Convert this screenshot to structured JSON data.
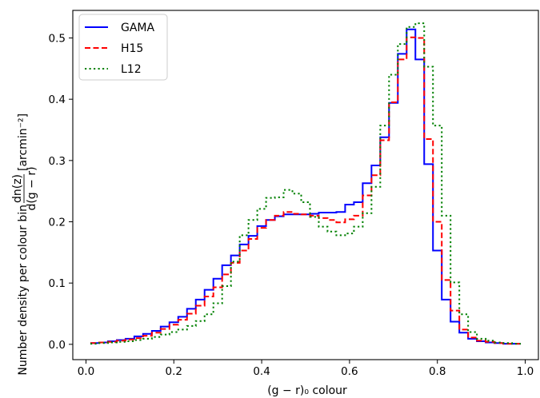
{
  "chart_data": {
    "type": "line",
    "xlabel": "(g − r)₀ colour",
    "ylabel_prefix": "Number density per colour bin",
    "ylabel_fraction_numerator": "dn(z)",
    "ylabel_fraction_denominator": "d(g − r)",
    "ylabel_units": "[arcmin⁻²]",
    "xlim": [
      -0.03,
      1.03
    ],
    "ylim": [
      -0.025,
      0.545
    ],
    "xticks": [
      0.0,
      0.2,
      0.4,
      0.6,
      0.8,
      1.0
    ],
    "xtick_labels": [
      "0.0",
      "0.2",
      "0.4",
      "0.6",
      "0.8",
      "1.0"
    ],
    "yticks": [
      0.0,
      0.1,
      0.2,
      0.3,
      0.4,
      0.5
    ],
    "ytick_labels": [
      "0.0",
      "0.1",
      "0.2",
      "0.3",
      "0.4",
      "0.5"
    ],
    "grid": false,
    "legend_position": "top-left",
    "bin_edges": [
      0.01,
      0.03,
      0.05,
      0.07,
      0.09,
      0.11,
      0.13,
      0.15,
      0.17,
      0.19,
      0.21,
      0.23,
      0.25,
      0.27,
      0.29,
      0.31,
      0.33,
      0.35,
      0.37,
      0.39,
      0.41,
      0.43,
      0.45,
      0.47,
      0.49,
      0.51,
      0.53,
      0.55,
      0.57,
      0.59,
      0.61,
      0.63,
      0.65,
      0.67,
      0.69,
      0.71,
      0.73,
      0.75,
      0.77,
      0.79,
      0.81,
      0.83,
      0.85,
      0.87,
      0.89,
      0.91,
      0.93,
      0.95,
      0.97,
      0.99
    ],
    "series": [
      {
        "name": "GAMA",
        "color": "#0000ff",
        "dash": "solid",
        "values": [
          0.002,
          0.003,
          0.005,
          0.007,
          0.009,
          0.013,
          0.017,
          0.022,
          0.029,
          0.036,
          0.045,
          0.058,
          0.073,
          0.089,
          0.107,
          0.129,
          0.145,
          0.163,
          0.177,
          0.193,
          0.203,
          0.209,
          0.212,
          0.212,
          0.212,
          0.213,
          0.215,
          0.215,
          0.216,
          0.228,
          0.232,
          0.263,
          0.292,
          0.338,
          0.394,
          0.474,
          0.514,
          0.465,
          0.294,
          0.153,
          0.073,
          0.037,
          0.019,
          0.009,
          0.005,
          0.003,
          0.002,
          0.001,
          0.001
        ]
      },
      {
        "name": "H15",
        "color": "#ff0000",
        "dash": "dashed",
        "values": [
          0.002,
          0.003,
          0.004,
          0.006,
          0.008,
          0.01,
          0.014,
          0.019,
          0.025,
          0.032,
          0.04,
          0.05,
          0.063,
          0.078,
          0.093,
          0.114,
          0.133,
          0.153,
          0.172,
          0.19,
          0.203,
          0.21,
          0.216,
          0.213,
          0.212,
          0.21,
          0.206,
          0.203,
          0.199,
          0.204,
          0.21,
          0.243,
          0.276,
          0.333,
          0.395,
          0.465,
          0.501,
          0.5,
          0.335,
          0.2,
          0.105,
          0.055,
          0.024,
          0.011,
          0.006,
          0.004,
          0.002,
          0.001,
          0.001
        ]
      },
      {
        "name": "L12",
        "color": "#008000",
        "dash": "dotted",
        "values": [
          0.001,
          0.002,
          0.003,
          0.004,
          0.005,
          0.007,
          0.009,
          0.012,
          0.016,
          0.02,
          0.024,
          0.03,
          0.038,
          0.049,
          0.067,
          0.095,
          0.135,
          0.178,
          0.203,
          0.221,
          0.239,
          0.24,
          0.252,
          0.246,
          0.232,
          0.208,
          0.192,
          0.184,
          0.178,
          0.181,
          0.192,
          0.214,
          0.257,
          0.357,
          0.44,
          0.49,
          0.518,
          0.524,
          0.453,
          0.357,
          0.21,
          0.101,
          0.049,
          0.02,
          0.009,
          0.006,
          0.003,
          0.002,
          0.001
        ]
      }
    ]
  }
}
